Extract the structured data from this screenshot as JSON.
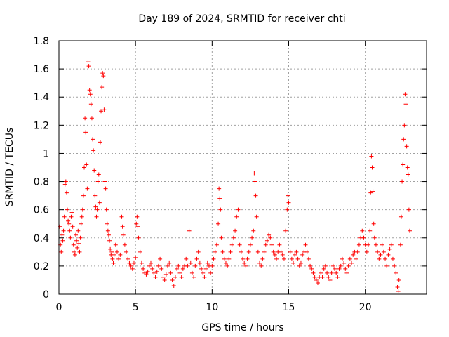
{
  "chart_data": {
    "type": "scatter",
    "title": "Day 189 of 2024, SRMTID for receiver chti",
    "xlabel": "GPS time / hours",
    "ylabel": "SRMTID / TECUs",
    "xlim": [
      0,
      24
    ],
    "ylim": [
      0,
      1.8
    ],
    "xticks": [
      0,
      5,
      10,
      15,
      20
    ],
    "xtick_labels": [
      "0",
      "5",
      "10",
      "15",
      "20"
    ],
    "yticks": [
      0,
      0.2,
      0.4,
      0.6,
      0.8,
      1,
      1.2,
      1.4,
      1.6,
      1.8
    ],
    "ytick_labels": [
      "0",
      "0.2",
      "0.4",
      "0.6",
      "0.8",
      "1",
      "1.2",
      "1.4",
      "1.6",
      "1.8"
    ],
    "grid": true,
    "marker": "+",
    "series": [
      {
        "name": "SRMTID",
        "color": "#ff0000",
        "points": [
          [
            0.05,
            0.48
          ],
          [
            0.1,
            0.35
          ],
          [
            0.15,
            0.3
          ],
          [
            0.2,
            0.42
          ],
          [
            0.25,
            0.38
          ],
          [
            0.3,
            0.45
          ],
          [
            0.35,
            0.55
          ],
          [
            0.4,
            0.78
          ],
          [
            0.45,
            0.8
          ],
          [
            0.5,
            0.72
          ],
          [
            0.55,
            0.6
          ],
          [
            0.6,
            0.52
          ],
          [
            0.65,
            0.5
          ],
          [
            0.7,
            0.45
          ],
          [
            0.75,
            0.4
          ],
          [
            0.8,
            0.55
          ],
          [
            0.85,
            0.58
          ],
          [
            0.9,
            0.48
          ],
          [
            0.95,
            0.35
          ],
          [
            1.0,
            0.3
          ],
          [
            1.05,
            0.28
          ],
          [
            1.1,
            0.42
          ],
          [
            1.15,
            0.38
          ],
          [
            1.2,
            0.33
          ],
          [
            1.25,
            0.45
          ],
          [
            1.3,
            0.36
          ],
          [
            1.35,
            0.3
          ],
          [
            1.4,
            0.4
          ],
          [
            1.45,
            0.5
          ],
          [
            1.5,
            0.55
          ],
          [
            1.55,
            0.6
          ],
          [
            1.6,
            0.7
          ],
          [
            1.65,
            0.9
          ],
          [
            1.7,
            1.25
          ],
          [
            1.75,
            1.15
          ],
          [
            1.8,
            0.92
          ],
          [
            1.85,
            0.75
          ],
          [
            1.9,
            1.65
          ],
          [
            1.95,
            1.62
          ],
          [
            2.0,
            1.45
          ],
          [
            2.05,
            1.42
          ],
          [
            2.1,
            1.35
          ],
          [
            2.15,
            1.25
          ],
          [
            2.2,
            1.1
          ],
          [
            2.25,
            1.02
          ],
          [
            2.3,
            0.88
          ],
          [
            2.35,
            0.7
          ],
          [
            2.4,
            0.62
          ],
          [
            2.45,
            0.55
          ],
          [
            2.5,
            0.6
          ],
          [
            2.55,
            0.8
          ],
          [
            2.6,
            0.85
          ],
          [
            2.65,
            0.65
          ],
          [
            2.7,
            1.08
          ],
          [
            2.75,
            1.3
          ],
          [
            2.8,
            1.47
          ],
          [
            2.85,
            1.57
          ],
          [
            2.9,
            1.55
          ],
          [
            2.95,
            1.31
          ],
          [
            3.0,
            0.8
          ],
          [
            3.05,
            0.75
          ],
          [
            3.1,
            0.6
          ],
          [
            3.15,
            0.5
          ],
          [
            3.2,
            0.45
          ],
          [
            3.25,
            0.42
          ],
          [
            3.3,
            0.38
          ],
          [
            3.35,
            0.32
          ],
          [
            3.4,
            0.28
          ],
          [
            3.45,
            0.3
          ],
          [
            3.5,
            0.25
          ],
          [
            3.55,
            0.22
          ],
          [
            3.6,
            0.28
          ],
          [
            3.7,
            0.35
          ],
          [
            3.8,
            0.3
          ],
          [
            3.9,
            0.25
          ],
          [
            4.0,
            0.28
          ],
          [
            4.1,
            0.55
          ],
          [
            4.15,
            0.48
          ],
          [
            4.2,
            0.42
          ],
          [
            4.3,
            0.35
          ],
          [
            4.4,
            0.3
          ],
          [
            4.5,
            0.25
          ],
          [
            4.6,
            0.22
          ],
          [
            4.7,
            0.2
          ],
          [
            4.8,
            0.18
          ],
          [
            4.9,
            0.22
          ],
          [
            5.0,
            0.26
          ],
          [
            5.05,
            0.5
          ],
          [
            5.1,
            0.55
          ],
          [
            5.15,
            0.48
          ],
          [
            5.2,
            0.4
          ],
          [
            5.3,
            0.3
          ],
          [
            5.4,
            0.22
          ],
          [
            5.5,
            0.18
          ],
          [
            5.6,
            0.15
          ],
          [
            5.7,
            0.14
          ],
          [
            5.8,
            0.16
          ],
          [
            5.9,
            0.2
          ],
          [
            6.0,
            0.22
          ],
          [
            6.1,
            0.18
          ],
          [
            6.2,
            0.15
          ],
          [
            6.3,
            0.12
          ],
          [
            6.4,
            0.16
          ],
          [
            6.5,
            0.2
          ],
          [
            6.6,
            0.25
          ],
          [
            6.7,
            0.18
          ],
          [
            6.8,
            0.12
          ],
          [
            6.9,
            0.1
          ],
          [
            7.0,
            0.14
          ],
          [
            7.1,
            0.2
          ],
          [
            7.2,
            0.22
          ],
          [
            7.3,
            0.15
          ],
          [
            7.4,
            0.1
          ],
          [
            7.5,
            0.06
          ],
          [
            7.6,
            0.12
          ],
          [
            7.7,
            0.18
          ],
          [
            7.8,
            0.2
          ],
          [
            7.9,
            0.15
          ],
          [
            8.0,
            0.12
          ],
          [
            8.1,
            0.18
          ],
          [
            8.2,
            0.2
          ],
          [
            8.3,
            0.25
          ],
          [
            8.4,
            0.2
          ],
          [
            8.5,
            0.45
          ],
          [
            8.6,
            0.22
          ],
          [
            8.7,
            0.15
          ],
          [
            8.8,
            0.12
          ],
          [
            8.9,
            0.2
          ],
          [
            9.0,
            0.25
          ],
          [
            9.1,
            0.3
          ],
          [
            9.2,
            0.22
          ],
          [
            9.3,
            0.18
          ],
          [
            9.4,
            0.15
          ],
          [
            9.5,
            0.12
          ],
          [
            9.6,
            0.18
          ],
          [
            9.7,
            0.22
          ],
          [
            9.8,
            0.2
          ],
          [
            9.9,
            0.15
          ],
          [
            10.0,
            0.2
          ],
          [
            10.1,
            0.25
          ],
          [
            10.2,
            0.3
          ],
          [
            10.3,
            0.35
          ],
          [
            10.4,
            0.5
          ],
          [
            10.45,
            0.75
          ],
          [
            10.5,
            0.68
          ],
          [
            10.55,
            0.6
          ],
          [
            10.6,
            0.4
          ],
          [
            10.7,
            0.3
          ],
          [
            10.8,
            0.25
          ],
          [
            10.9,
            0.22
          ],
          [
            11.0,
            0.2
          ],
          [
            11.1,
            0.25
          ],
          [
            11.2,
            0.3
          ],
          [
            11.3,
            0.35
          ],
          [
            11.4,
            0.4
          ],
          [
            11.5,
            0.45
          ],
          [
            11.6,
            0.55
          ],
          [
            11.7,
            0.6
          ],
          [
            11.8,
            0.35
          ],
          [
            11.9,
            0.3
          ],
          [
            12.0,
            0.25
          ],
          [
            12.1,
            0.22
          ],
          [
            12.2,
            0.2
          ],
          [
            12.3,
            0.25
          ],
          [
            12.4,
            0.3
          ],
          [
            12.5,
            0.35
          ],
          [
            12.6,
            0.4
          ],
          [
            12.7,
            0.45
          ],
          [
            12.75,
            0.86
          ],
          [
            12.8,
            0.8
          ],
          [
            12.85,
            0.7
          ],
          [
            12.9,
            0.55
          ],
          [
            13.0,
            0.3
          ],
          [
            13.1,
            0.22
          ],
          [
            13.2,
            0.2
          ],
          [
            13.3,
            0.25
          ],
          [
            13.4,
            0.3
          ],
          [
            13.5,
            0.35
          ],
          [
            13.6,
            0.38
          ],
          [
            13.7,
            0.42
          ],
          [
            13.8,
            0.4
          ],
          [
            13.9,
            0.35
          ],
          [
            14.0,
            0.3
          ],
          [
            14.1,
            0.28
          ],
          [
            14.2,
            0.25
          ],
          [
            14.3,
            0.3
          ],
          [
            14.4,
            0.35
          ],
          [
            14.5,
            0.3
          ],
          [
            14.6,
            0.28
          ],
          [
            14.7,
            0.25
          ],
          [
            14.8,
            0.45
          ],
          [
            14.9,
            0.6
          ],
          [
            14.95,
            0.7
          ],
          [
            15.0,
            0.65
          ],
          [
            15.1,
            0.3
          ],
          [
            15.2,
            0.25
          ],
          [
            15.3,
            0.22
          ],
          [
            15.4,
            0.28
          ],
          [
            15.5,
            0.3
          ],
          [
            15.6,
            0.25
          ],
          [
            15.7,
            0.2
          ],
          [
            15.8,
            0.22
          ],
          [
            15.9,
            0.28
          ],
          [
            16.0,
            0.3
          ],
          [
            16.1,
            0.35
          ],
          [
            16.2,
            0.3
          ],
          [
            16.3,
            0.25
          ],
          [
            16.4,
            0.2
          ],
          [
            16.5,
            0.18
          ],
          [
            16.6,
            0.15
          ],
          [
            16.7,
            0.12
          ],
          [
            16.8,
            0.1
          ],
          [
            16.9,
            0.08
          ],
          [
            17.0,
            0.12
          ],
          [
            17.1,
            0.15
          ],
          [
            17.2,
            0.12
          ],
          [
            17.3,
            0.18
          ],
          [
            17.4,
            0.2
          ],
          [
            17.5,
            0.15
          ],
          [
            17.6,
            0.12
          ],
          [
            17.7,
            0.1
          ],
          [
            17.8,
            0.15
          ],
          [
            17.9,
            0.2
          ],
          [
            18.0,
            0.18
          ],
          [
            18.1,
            0.15
          ],
          [
            18.2,
            0.12
          ],
          [
            18.3,
            0.18
          ],
          [
            18.4,
            0.2
          ],
          [
            18.5,
            0.25
          ],
          [
            18.6,
            0.22
          ],
          [
            18.7,
            0.18
          ],
          [
            18.8,
            0.15
          ],
          [
            18.9,
            0.2
          ],
          [
            19.0,
            0.25
          ],
          [
            19.1,
            0.22
          ],
          [
            19.2,
            0.28
          ],
          [
            19.3,
            0.3
          ],
          [
            19.4,
            0.25
          ],
          [
            19.5,
            0.3
          ],
          [
            19.6,
            0.35
          ],
          [
            19.7,
            0.4
          ],
          [
            19.8,
            0.45
          ],
          [
            19.9,
            0.4
          ],
          [
            20.0,
            0.35
          ],
          [
            20.1,
            0.3
          ],
          [
            20.2,
            0.35
          ],
          [
            20.3,
            0.45
          ],
          [
            20.35,
            0.72
          ],
          [
            20.4,
            0.98
          ],
          [
            20.45,
            0.9
          ],
          [
            20.5,
            0.73
          ],
          [
            20.55,
            0.5
          ],
          [
            20.6,
            0.4
          ],
          [
            20.7,
            0.35
          ],
          [
            20.8,
            0.3
          ],
          [
            20.9,
            0.25
          ],
          [
            21.0,
            0.28
          ],
          [
            21.1,
            0.35
          ],
          [
            21.2,
            0.3
          ],
          [
            21.3,
            0.25
          ],
          [
            21.4,
            0.2
          ],
          [
            21.5,
            0.28
          ],
          [
            21.6,
            0.32
          ],
          [
            21.7,
            0.35
          ],
          [
            21.8,
            0.25
          ],
          [
            21.9,
            0.2
          ],
          [
            22.0,
            0.15
          ],
          [
            22.1,
            0.05
          ],
          [
            22.15,
            0.02
          ],
          [
            22.2,
            0.1
          ],
          [
            22.3,
            0.35
          ],
          [
            22.35,
            0.55
          ],
          [
            22.4,
            0.8
          ],
          [
            22.45,
            0.92
          ],
          [
            22.5,
            1.1
          ],
          [
            22.55,
            1.2
          ],
          [
            22.6,
            1.42
          ],
          [
            22.65,
            1.35
          ],
          [
            22.7,
            1.05
          ],
          [
            22.75,
            0.9
          ],
          [
            22.8,
            0.85
          ],
          [
            22.85,
            0.6
          ],
          [
            22.9,
            0.45
          ]
        ]
      }
    ]
  }
}
